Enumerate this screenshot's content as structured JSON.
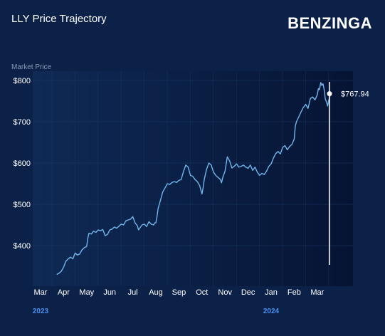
{
  "header": {
    "title": "LLY Price Trajectory",
    "brand": "BENZINGA"
  },
  "colors": {
    "background": "#0c2148",
    "plot_gradient_start": "#0f2a55",
    "plot_gradient_end": "#061434",
    "line": "#6fb6ec",
    "marker_line": "#ffffff",
    "year_label": "#4a8ff0",
    "grid": "#1e3a66",
    "tick_text": "#ffffff",
    "axis_title": "#8a9bb8"
  },
  "chart_data": {
    "type": "line",
    "ylabel": "Market Price",
    "ylim": [
      310,
      810
    ],
    "yticks": [
      {
        "value": 800,
        "label": "$800"
      },
      {
        "value": 700,
        "label": "$700"
      },
      {
        "value": 600,
        "label": "$600"
      },
      {
        "value": 500,
        "label": "$500"
      },
      {
        "value": 400,
        "label": "$400"
      }
    ],
    "xlim": [
      0,
      13.3
    ],
    "xticks": [
      {
        "value": 0,
        "label": "Mar"
      },
      {
        "value": 1,
        "label": "Apr"
      },
      {
        "value": 2,
        "label": "May"
      },
      {
        "value": 3,
        "label": "Jun"
      },
      {
        "value": 4,
        "label": "Jul"
      },
      {
        "value": 5,
        "label": "Aug"
      },
      {
        "value": 6,
        "label": "Sep"
      },
      {
        "value": 7,
        "label": "Oct"
      },
      {
        "value": 8,
        "label": "Nov"
      },
      {
        "value": 9,
        "label": "Dec"
      },
      {
        "value": 10,
        "label": "Jan"
      },
      {
        "value": 11,
        "label": "Feb"
      },
      {
        "value": 12,
        "label": "Mar"
      }
    ],
    "year_labels": [
      {
        "value": 0,
        "label": "2023"
      },
      {
        "value": 10,
        "label": "2024"
      }
    ],
    "current_value_label": "$767.94",
    "current_value": 767.94,
    "series": [
      {
        "points": [
          [
            0.7,
            330
          ],
          [
            0.8,
            333
          ],
          [
            0.9,
            338
          ],
          [
            1.0,
            348
          ],
          [
            1.1,
            362
          ],
          [
            1.2,
            368
          ],
          [
            1.3,
            372
          ],
          [
            1.4,
            368
          ],
          [
            1.5,
            382
          ],
          [
            1.6,
            377
          ],
          [
            1.7,
            380
          ],
          [
            1.8,
            390
          ],
          [
            1.9,
            395
          ],
          [
            2.0,
            398
          ],
          [
            2.05,
            418
          ],
          [
            2.1,
            430
          ],
          [
            2.2,
            428
          ],
          [
            2.3,
            435
          ],
          [
            2.4,
            432
          ],
          [
            2.5,
            438
          ],
          [
            2.6,
            436
          ],
          [
            2.7,
            439
          ],
          [
            2.8,
            424
          ],
          [
            2.9,
            427
          ],
          [
            3.0,
            438
          ],
          [
            3.1,
            440
          ],
          [
            3.2,
            445
          ],
          [
            3.3,
            442
          ],
          [
            3.4,
            447
          ],
          [
            3.5,
            452
          ],
          [
            3.6,
            450
          ],
          [
            3.7,
            460
          ],
          [
            3.8,
            462
          ],
          [
            3.9,
            464
          ],
          [
            4.0,
            470
          ],
          [
            4.1,
            455
          ],
          [
            4.2,
            448
          ],
          [
            4.25,
            438
          ],
          [
            4.3,
            442
          ],
          [
            4.4,
            450
          ],
          [
            4.5,
            452
          ],
          [
            4.6,
            446
          ],
          [
            4.7,
            458
          ],
          [
            4.8,
            452
          ],
          [
            4.9,
            450
          ],
          [
            4.95,
            455
          ],
          [
            5.0,
            455
          ],
          [
            5.05,
            470
          ],
          [
            5.1,
            490
          ],
          [
            5.2,
            510
          ],
          [
            5.3,
            530
          ],
          [
            5.4,
            540
          ],
          [
            5.5,
            550
          ],
          [
            5.6,
            548
          ],
          [
            5.7,
            553
          ],
          [
            5.8,
            555
          ],
          [
            5.9,
            553
          ],
          [
            6.0,
            558
          ],
          [
            6.1,
            560
          ],
          [
            6.2,
            580
          ],
          [
            6.3,
            595
          ],
          [
            6.4,
            590
          ],
          [
            6.5,
            570
          ],
          [
            6.6,
            568
          ],
          [
            6.7,
            560
          ],
          [
            6.8,
            555
          ],
          [
            6.9,
            545
          ],
          [
            7.0,
            525
          ],
          [
            7.05,
            540
          ],
          [
            7.1,
            560
          ],
          [
            7.2,
            585
          ],
          [
            7.3,
            600
          ],
          [
            7.4,
            595
          ],
          [
            7.5,
            578
          ],
          [
            7.6,
            570
          ],
          [
            7.7,
            565
          ],
          [
            7.8,
            560
          ],
          [
            7.85,
            552
          ],
          [
            7.9,
            565
          ],
          [
            8.0,
            580
          ],
          [
            8.1,
            615
          ],
          [
            8.2,
            605
          ],
          [
            8.3,
            588
          ],
          [
            8.4,
            592
          ],
          [
            8.5,
            598
          ],
          [
            8.6,
            590
          ],
          [
            8.7,
            592
          ],
          [
            8.8,
            595
          ],
          [
            8.9,
            590
          ],
          [
            9.0,
            587
          ],
          [
            9.1,
            595
          ],
          [
            9.2,
            582
          ],
          [
            9.3,
            590
          ],
          [
            9.4,
            578
          ],
          [
            9.5,
            570
          ],
          [
            9.6,
            575
          ],
          [
            9.7,
            572
          ],
          [
            9.8,
            580
          ],
          [
            9.9,
            592
          ],
          [
            10.0,
            598
          ],
          [
            10.1,
            612
          ],
          [
            10.2,
            623
          ],
          [
            10.3,
            628
          ],
          [
            10.4,
            622
          ],
          [
            10.5,
            638
          ],
          [
            10.6,
            642
          ],
          [
            10.7,
            632
          ],
          [
            10.8,
            640
          ],
          [
            10.9,
            645
          ],
          [
            11.0,
            658
          ],
          [
            11.05,
            690
          ],
          [
            11.1,
            700
          ],
          [
            11.2,
            712
          ],
          [
            11.3,
            724
          ],
          [
            11.4,
            735
          ],
          [
            11.5,
            742
          ],
          [
            11.6,
            732
          ],
          [
            11.7,
            756
          ],
          [
            11.8,
            760
          ],
          [
            11.9,
            753
          ],
          [
            12.0,
            765
          ],
          [
            12.05,
            780
          ],
          [
            12.1,
            778
          ],
          [
            12.15,
            795
          ],
          [
            12.2,
            788
          ],
          [
            12.25,
            792
          ],
          [
            12.3,
            778
          ],
          [
            12.35,
            755
          ],
          [
            12.4,
            748
          ],
          [
            12.45,
            738
          ],
          [
            12.5,
            752
          ],
          [
            12.55,
            762
          ],
          [
            12.6,
            767.94
          ]
        ]
      }
    ]
  }
}
